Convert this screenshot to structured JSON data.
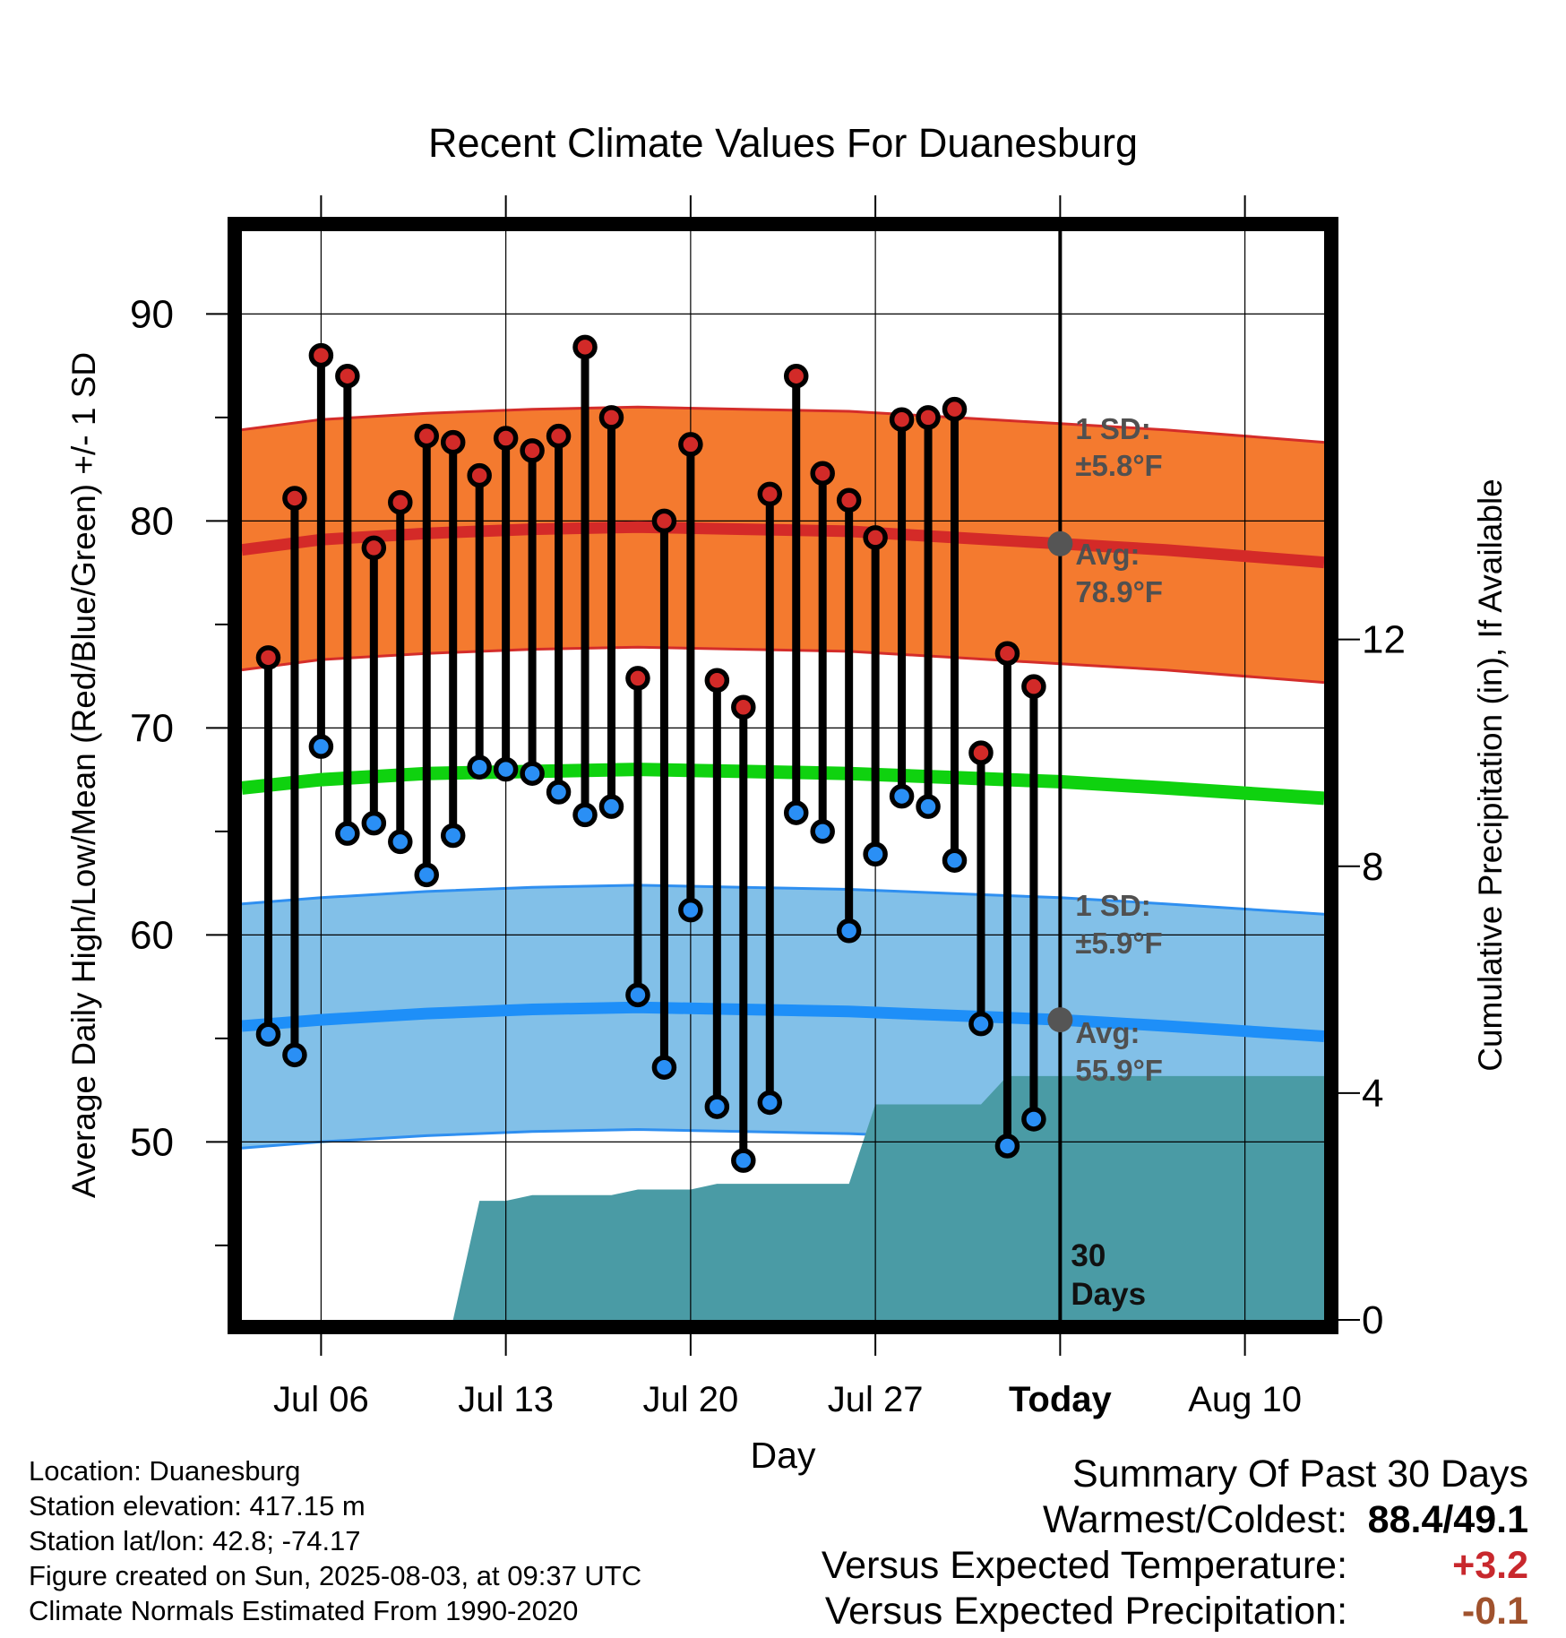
{
  "chart_data": {
    "type": "line",
    "title": "Recent Climate Values For Duanesburg",
    "xlabel": "Day",
    "ylabel": "Average Daily High/Low/Mean (Red/Blue/Green) +/- 1 SD",
    "y2label": "Cumulative Precipitation (in), If Available",
    "x_tick_labels": [
      "Jul 06",
      "Jul 13",
      "Jul 20",
      "Jul 27",
      "Today",
      "Aug 10"
    ],
    "x_tick_dates": [
      "2025-07-06",
      "2025-07-13",
      "2025-07-20",
      "2025-07-27",
      "2025-08-03",
      "2025-08-10"
    ],
    "x_range": [
      "2025-07-03",
      "2025-08-13"
    ],
    "today": "2025-08-03",
    "y_ticks": [
      50,
      60,
      70,
      80,
      90
    ],
    "y_range": [
      41.4,
      94.0
    ],
    "y2_ticks": [
      0,
      4,
      8,
      12
    ],
    "y2_range": [
      0,
      19.2
    ],
    "grid": true,
    "high": {
      "dates": [
        "2025-07-04",
        "2025-07-05",
        "2025-07-06",
        "2025-07-07",
        "2025-07-08",
        "2025-07-09",
        "2025-07-10",
        "2025-07-11",
        "2025-07-12",
        "2025-07-13",
        "2025-07-14",
        "2025-07-15",
        "2025-07-16",
        "2025-07-17",
        "2025-07-18",
        "2025-07-19",
        "2025-07-20",
        "2025-07-21",
        "2025-07-22",
        "2025-07-23",
        "2025-07-24",
        "2025-07-25",
        "2025-07-26",
        "2025-07-27",
        "2025-07-28",
        "2025-07-29",
        "2025-07-30",
        "2025-07-31",
        "2025-08-01",
        "2025-08-02"
      ],
      "values": [
        73.4,
        81.1,
        88.0,
        87.0,
        78.7,
        80.9,
        84.1,
        83.8,
        82.2,
        84.0,
        83.4,
        84.1,
        88.4,
        85.0,
        72.4,
        80.0,
        83.7,
        72.3,
        71.0,
        81.3,
        87.0,
        82.3,
        81.0,
        79.2,
        84.9,
        85.0,
        85.4,
        68.8,
        73.6,
        72.0
      ]
    },
    "low": {
      "dates": [
        "2025-07-04",
        "2025-07-05",
        "2025-07-06",
        "2025-07-07",
        "2025-07-08",
        "2025-07-09",
        "2025-07-10",
        "2025-07-11",
        "2025-07-12",
        "2025-07-13",
        "2025-07-14",
        "2025-07-15",
        "2025-07-16",
        "2025-07-17",
        "2025-07-18",
        "2025-07-19",
        "2025-07-20",
        "2025-07-21",
        "2025-07-22",
        "2025-07-23",
        "2025-07-24",
        "2025-07-25",
        "2025-07-26",
        "2025-07-27",
        "2025-07-28",
        "2025-07-29",
        "2025-07-30",
        "2025-07-31",
        "2025-08-01",
        "2025-08-02"
      ],
      "values": [
        55.2,
        54.2,
        69.1,
        64.9,
        65.4,
        64.5,
        62.9,
        64.8,
        68.1,
        68.0,
        67.8,
        66.9,
        65.8,
        66.2,
        57.1,
        53.6,
        61.2,
        51.7,
        49.1,
        51.9,
        65.9,
        65.0,
        60.2,
        63.9,
        66.7,
        66.2,
        63.6,
        55.7,
        49.8,
        51.1
      ]
    },
    "normal_high": {
      "dates": [
        "2025-07-03",
        "2025-07-06",
        "2025-07-10",
        "2025-07-14",
        "2025-07-18",
        "2025-07-22",
        "2025-07-26",
        "2025-07-30",
        "2025-08-03",
        "2025-08-07",
        "2025-08-13"
      ],
      "values": [
        78.6,
        79.1,
        79.4,
        79.6,
        79.7,
        79.6,
        79.5,
        79.2,
        78.9,
        78.6,
        78.0
      ]
    },
    "normal_low": {
      "dates": [
        "2025-07-03",
        "2025-07-06",
        "2025-07-10",
        "2025-07-14",
        "2025-07-18",
        "2025-07-22",
        "2025-07-26",
        "2025-07-30",
        "2025-08-03",
        "2025-08-07",
        "2025-08-13"
      ],
      "values": [
        55.6,
        55.9,
        56.2,
        56.4,
        56.5,
        56.4,
        56.3,
        56.1,
        55.9,
        55.6,
        55.1
      ]
    },
    "normal_mean": {
      "dates": [
        "2025-07-03",
        "2025-07-06",
        "2025-07-10",
        "2025-07-14",
        "2025-07-18",
        "2025-07-22",
        "2025-07-26",
        "2025-07-30",
        "2025-08-03",
        "2025-08-07",
        "2025-08-13"
      ],
      "values": [
        67.1,
        67.5,
        67.8,
        67.9,
        68.0,
        67.9,
        67.8,
        67.6,
        67.4,
        67.1,
        66.6
      ]
    },
    "high_sd": 5.8,
    "low_sd": 5.9,
    "precip": {
      "dates": [
        "2025-07-03",
        "2025-07-11",
        "2025-07-12",
        "2025-07-13",
        "2025-07-14",
        "2025-07-17",
        "2025-07-18",
        "2025-07-20",
        "2025-07-21",
        "2025-07-26",
        "2025-07-27",
        "2025-07-31",
        "2025-08-01",
        "2025-08-13"
      ],
      "values": [
        0,
        0,
        2.1,
        2.1,
        2.2,
        2.2,
        2.3,
        2.3,
        2.4,
        2.4,
        3.8,
        3.8,
        4.3,
        4.3
      ]
    },
    "annotations": {
      "high_sd_label": "1 SD:",
      "high_sd_value": "±5.8°F",
      "high_avg_label": "Avg:",
      "high_avg_value": "78.9°F",
      "low_sd_label": "1 SD:",
      "low_sd_value": "±5.9°F",
      "low_avg_label": "Avg:",
      "low_avg_value": "55.9°F",
      "days_label_1": "30",
      "days_label_2": "Days"
    },
    "colors": {
      "high_band": "#f47a2f",
      "high_edge": "#d42d2a",
      "high_line": "#d42a28",
      "low_band": "#82c0e8",
      "low_edge": "#2f8ff0",
      "low_line": "#1e8ff8",
      "mean_line": "#0fd20f",
      "precip": "#4a9ba5",
      "high_dot": "#d22a28",
      "low_dot": "#2a8ff5",
      "today_marker": "#555555",
      "annotation_text": "#505050"
    }
  },
  "info": {
    "location": "Location: Duanesburg",
    "elevation": "Station elevation: 417.15 m",
    "latlon": "Station lat/lon: 42.8; -74.17",
    "created": "Figure created on Sun, 2025-08-03, at 09:37 UTC",
    "normals": "Climate Normals Estimated From 1990-2020"
  },
  "summary": {
    "title": "Summary Of Past 30 Days",
    "warm_label": "Warmest/Coldest:",
    "warm_value": "88.4/49.1",
    "temp_label": "Versus Expected Temperature:",
    "temp_value": "+3.2",
    "temp_color": "#c8282d",
    "precip_label": "Versus Expected Precipitation:",
    "precip_value": "-0.1",
    "precip_color": "#a0522d"
  }
}
